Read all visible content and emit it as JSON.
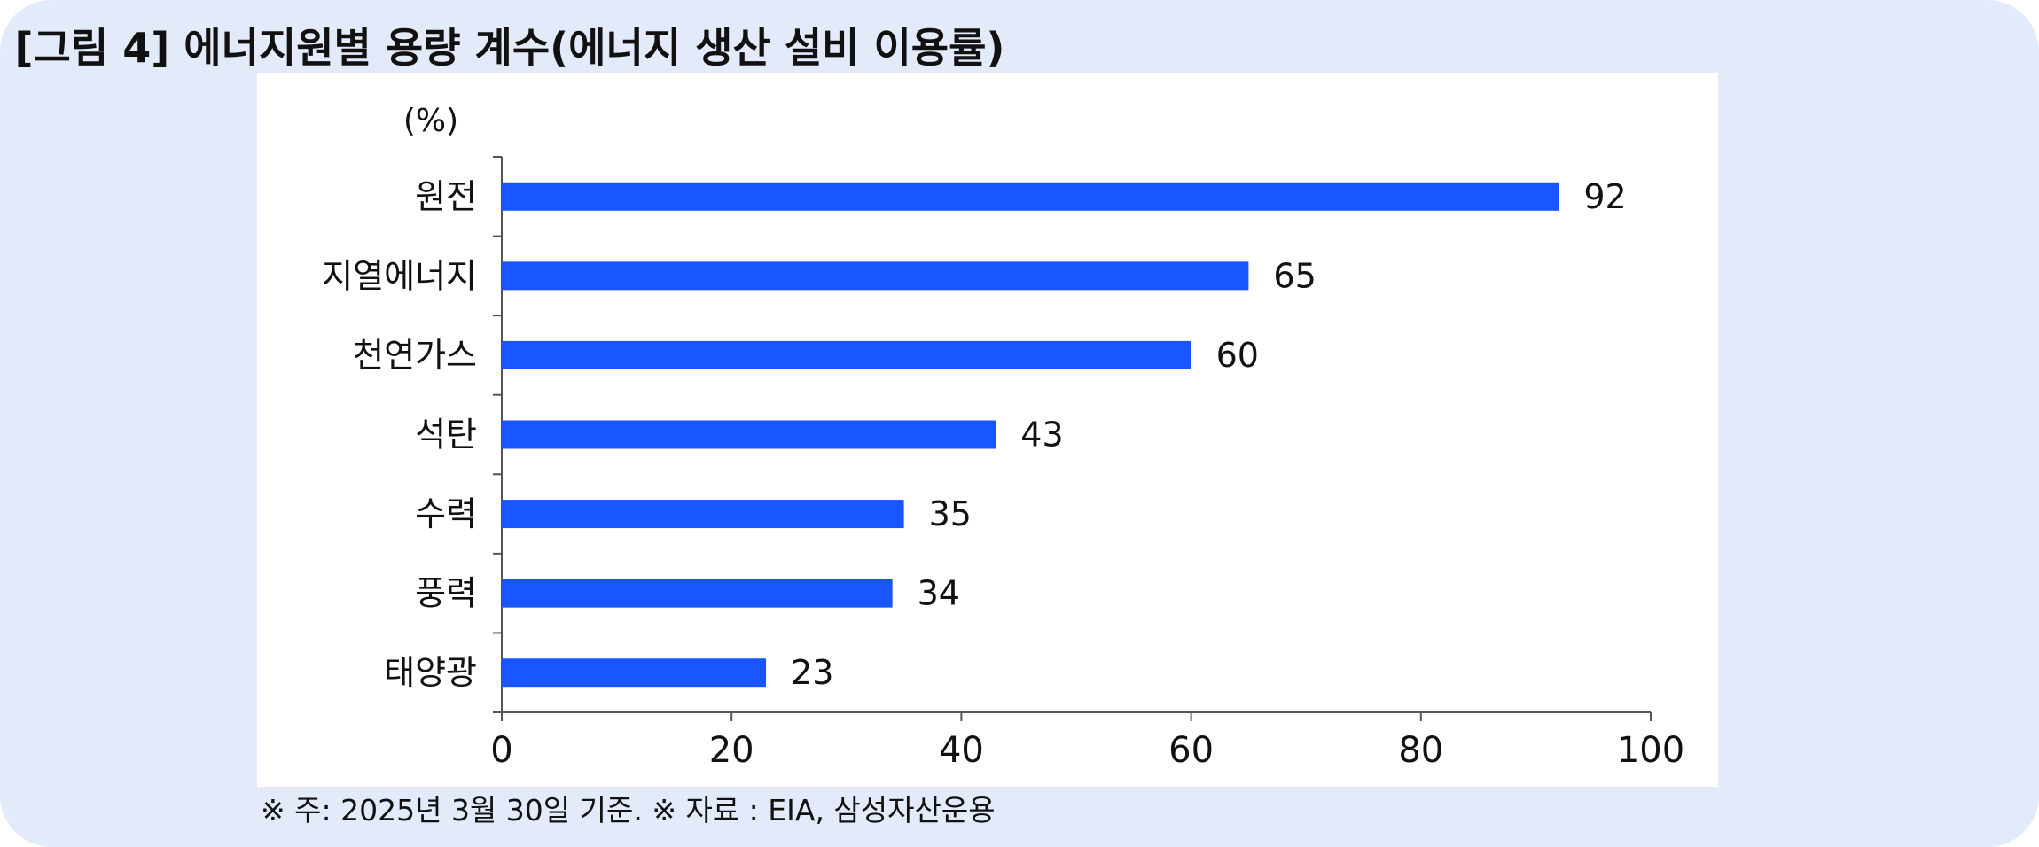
{
  "title": "[그림 4] 에너지원별 용량 계수(에너지 생산 설비 이용률)",
  "footnote": "※ 주: 2025년 3월 30일 기준. ※ 자료 : EIA, 삼성자산운용",
  "colors": {
    "bar": "#1a56ff",
    "background": "#e3ebfb",
    "plot": "#ffffff"
  },
  "chart_data": {
    "type": "bar",
    "orientation": "horizontal",
    "unit_label": "(%)",
    "categories": [
      "원전",
      "지열에너지",
      "천연가스",
      "석탄",
      "수력",
      "풍력",
      "태양광"
    ],
    "values": [
      92,
      65,
      60,
      43,
      35,
      34,
      23
    ],
    "xlim": [
      0,
      100
    ],
    "xticks": [
      "0",
      "20",
      "40",
      "60",
      "80",
      "100"
    ],
    "grid": false,
    "legend": "none"
  }
}
